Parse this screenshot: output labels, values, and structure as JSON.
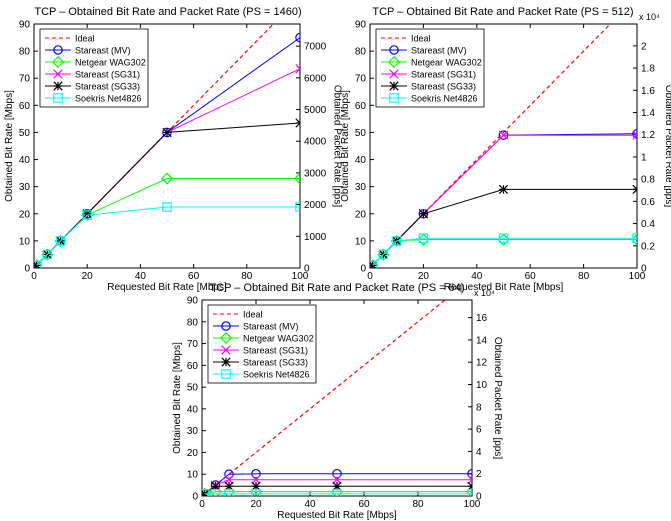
{
  "chart_data": [
    {
      "type": "line",
      "title": "TCP – Obtained Bit Rate and Packet Rate (PS = 1460)",
      "xlabel": "Requested Bit Rate [Mbps]",
      "ylabel": "Obtained Bit Rate [Mbps]",
      "y2label": "Obtained Packet Rate [pps]",
      "xlim": [
        0,
        100
      ],
      "ylim": [
        0,
        90
      ],
      "xticks": [
        "0",
        "20",
        "40",
        "60",
        "80",
        "100"
      ],
      "yticks": [
        "0",
        "10",
        "20",
        "30",
        "40",
        "50",
        "60",
        "70",
        "80",
        "90"
      ],
      "y2lim": [
        0,
        7699
      ],
      "y2ticks": [
        "0",
        "1000",
        "2000",
        "3000",
        "4000",
        "5000",
        "6000",
        "7000"
      ],
      "y2exponent": "",
      "grid": false,
      "legend_position": "top-left",
      "x": [
        1,
        5,
        10,
        20,
        50,
        100
      ],
      "series": [
        {
          "name": "Ideal",
          "color": "#ff0000",
          "style": "dashed",
          "marker": "none",
          "x": [
            0,
            100
          ],
          "values": [
            0,
            100
          ]
        },
        {
          "name": "Stareast (MV)",
          "color": "#0000ff",
          "style": "solid",
          "marker": "circle",
          "values": [
            1,
            5,
            10,
            20,
            50,
            85
          ]
        },
        {
          "name": "Netgear WAG302",
          "color": "#00ff00",
          "style": "solid",
          "marker": "diamond",
          "values": [
            1,
            5,
            10,
            19.5,
            33,
            33
          ]
        },
        {
          "name": "Stareast (SG31)",
          "color": "#ff00ff",
          "style": "solid",
          "marker": "x",
          "values": [
            1,
            5,
            10,
            20,
            50,
            73.5
          ]
        },
        {
          "name": "Stareast (SG33)",
          "color": "#000000",
          "style": "solid",
          "marker": "star",
          "values": [
            1,
            5,
            10,
            20,
            50,
            53.5
          ]
        },
        {
          "name": "Soekris Net4826",
          "color": "#00ffff",
          "style": "solid",
          "marker": "square",
          "values": [
            1,
            5,
            10,
            19.5,
            22.5,
            22.5
          ]
        }
      ]
    },
    {
      "type": "line",
      "title": "TCP – Obtained Bit Rate and Packet Rate (PS = 512)",
      "xlabel": "Requested Bit Rate [Mbps]",
      "ylabel": "Obtained Bit Rate [Mbps]",
      "y2label": "Obtained Packet Rate [pps]",
      "xlim": [
        0,
        100
      ],
      "ylim": [
        0,
        90
      ],
      "xticks": [
        "0",
        "20",
        "40",
        "60",
        "80",
        "100"
      ],
      "yticks": [
        "0",
        "10",
        "20",
        "30",
        "40",
        "50",
        "60",
        "70",
        "80",
        "90"
      ],
      "y2lim": [
        0,
        2.197
      ],
      "y2ticks": [
        "0",
        "0.2",
        "0.4",
        "0.6",
        "0.8",
        "1",
        "1.2",
        "1.4",
        "1.6",
        "1.8",
        "2"
      ],
      "y2exponent": "x 10⁴",
      "grid": false,
      "legend_position": "top-left",
      "x": [
        1,
        5,
        10,
        20,
        50,
        100
      ],
      "series": [
        {
          "name": "Ideal",
          "color": "#ff0000",
          "style": "dashed",
          "marker": "none",
          "x": [
            0,
            100
          ],
          "values": [
            0,
            100
          ]
        },
        {
          "name": "Stareast (MV)",
          "color": "#0000ff",
          "style": "solid",
          "marker": "circle",
          "values": [
            1,
            5,
            10,
            20,
            49,
            49.5
          ]
        },
        {
          "name": "Netgear WAG302",
          "color": "#00ff00",
          "style": "solid",
          "marker": "diamond",
          "values": [
            1,
            5,
            10,
            10.5,
            10.5,
            10.5
          ]
        },
        {
          "name": "Stareast (SG31)",
          "color": "#ff00ff",
          "style": "solid",
          "marker": "x",
          "values": [
            1,
            5,
            10,
            20,
            49,
            49
          ]
        },
        {
          "name": "Stareast (SG33)",
          "color": "#000000",
          "style": "solid",
          "marker": "star",
          "values": [
            1,
            5,
            10,
            20,
            29,
            29
          ]
        },
        {
          "name": "Soekris Net4826",
          "color": "#00ffff",
          "style": "solid",
          "marker": "square",
          "values": [
            1,
            5,
            10,
            11,
            11,
            11
          ]
        }
      ]
    },
    {
      "type": "line",
      "title": "TCP – Obtained Bit Rate and Packet Rate (PS = 64)",
      "xlabel": "Requested Bit Rate [Mbps]",
      "ylabel": "Obtained Bit Rate [Mbps]",
      "y2label": "Obtained Packet Rate [pps]",
      "xlim": [
        0,
        100
      ],
      "ylim": [
        0,
        90
      ],
      "xticks": [
        "0",
        "20",
        "40",
        "60",
        "80",
        "100"
      ],
      "yticks": [
        "0",
        "10",
        "20",
        "30",
        "40",
        "50",
        "60",
        "70",
        "80",
        "90"
      ],
      "y2lim": [
        0,
        17.58
      ],
      "y2ticks": [
        "0",
        "2",
        "4",
        "6",
        "8",
        "10",
        "12",
        "14",
        "16"
      ],
      "y2exponent": "x 10⁴",
      "grid": false,
      "legend_position": "top-left",
      "x": [
        1,
        5,
        10,
        20,
        50,
        100
      ],
      "series": [
        {
          "name": "Ideal",
          "color": "#ff0000",
          "style": "dashed",
          "marker": "none",
          "x": [
            0,
            100
          ],
          "values": [
            0,
            100
          ]
        },
        {
          "name": "Stareast (MV)",
          "color": "#0000ff",
          "style": "solid",
          "marker": "circle",
          "values": [
            1,
            5,
            10,
            10.2,
            10.2,
            10.2
          ]
        },
        {
          "name": "Netgear WAG302",
          "color": "#00ff00",
          "style": "solid",
          "marker": "diamond",
          "values": [
            1,
            2,
            2,
            2,
            2,
            2
          ]
        },
        {
          "name": "Stareast (SG31)",
          "color": "#ff00ff",
          "style": "solid",
          "marker": "x",
          "values": [
            1,
            5,
            7.5,
            7.5,
            7.5,
            7.5
          ]
        },
        {
          "name": "Stareast (SG33)",
          "color": "#000000",
          "style": "solid",
          "marker": "star",
          "values": [
            1,
            4.5,
            4.5,
            4.5,
            4.5,
            4.5
          ]
        },
        {
          "name": "Soekris Net4826",
          "color": "#00ffff",
          "style": "solid",
          "marker": "square",
          "values": [
            1,
            1,
            1,
            1,
            1,
            1
          ]
        }
      ]
    }
  ]
}
